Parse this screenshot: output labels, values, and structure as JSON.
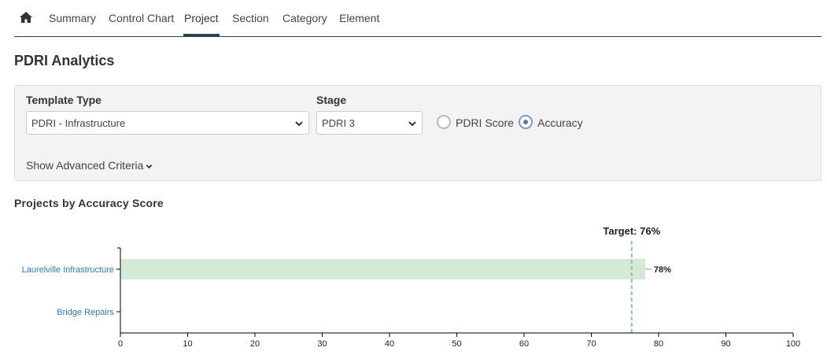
{
  "nav": {
    "home_icon": "home-icon",
    "tabs": [
      {
        "label": "Summary",
        "active": false
      },
      {
        "label": "Control Chart",
        "active": false
      },
      {
        "label": "Project",
        "active": true
      },
      {
        "label": "Section",
        "active": false
      },
      {
        "label": "Category",
        "active": false
      },
      {
        "label": "Element",
        "active": false
      }
    ]
  },
  "page_title": "PDRI Analytics",
  "filters": {
    "template_type_label": "Template Type",
    "template_type_value": "PDRI - Infrastructure",
    "stage_label": "Stage",
    "stage_value": "PDRI 3",
    "radio_pdri_score": "PDRI Score",
    "radio_accuracy": "Accuracy",
    "selected_metric": "Accuracy",
    "advanced_link": "Show Advanced Criteria"
  },
  "chart_title": "Projects by Accuracy Score",
  "chart_data": {
    "type": "bar",
    "orientation": "horizontal",
    "categories": [
      "Laurelville Infrastructure",
      "Bridge Repairs"
    ],
    "values": [
      78,
      null
    ],
    "value_labels": [
      "78%",
      ""
    ],
    "xlim": [
      0,
      100
    ],
    "xticks": [
      0,
      10,
      20,
      30,
      40,
      50,
      60,
      70,
      80,
      90,
      100
    ],
    "target": {
      "value": 76,
      "label": "Target: 76%"
    },
    "bar_color": "#d4ead6",
    "target_color": "#8fc89a",
    "category_color": "#337ab7"
  }
}
